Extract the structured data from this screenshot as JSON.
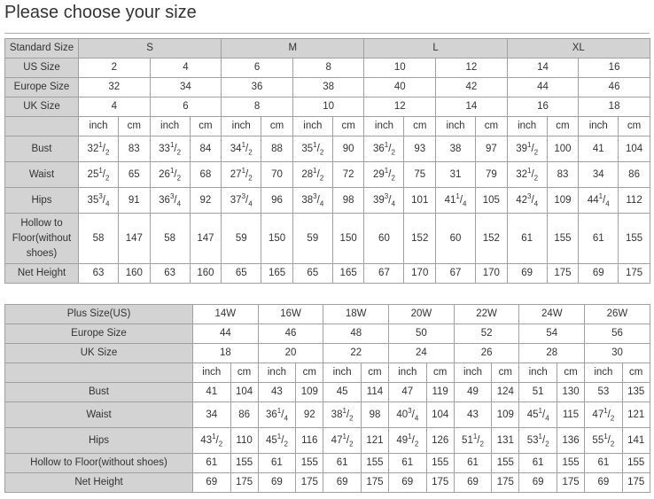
{
  "title": "Please choose your size",
  "colors": {
    "header_bg": "#d3d3d3",
    "border": "#a0a0a0",
    "text": "#333333"
  },
  "standard_table": {
    "header_label": "Standard Size",
    "groups": [
      "S",
      "M",
      "L",
      "XL"
    ],
    "size_rows": [
      {
        "label": "US Size",
        "values": [
          "2",
          "4",
          "6",
          "8",
          "10",
          "12",
          "14",
          "16"
        ]
      },
      {
        "label": "Europe Size",
        "values": [
          "32",
          "34",
          "36",
          "38",
          "40",
          "42",
          "44",
          "46"
        ]
      },
      {
        "label": "UK Size",
        "values": [
          "4",
          "6",
          "8",
          "10",
          "12",
          "14",
          "16",
          "18"
        ]
      }
    ],
    "units": [
      "inch",
      "cm"
    ],
    "measure_rows": [
      {
        "label": "Bust",
        "values": [
          "32 1/2",
          "83",
          "33 1/2",
          "84",
          "34 1/2",
          "88",
          "35 1/2",
          "90",
          "36 1/2",
          "93",
          "38",
          "97",
          "39 1/2",
          "100",
          "41",
          "104"
        ]
      },
      {
        "label": "Waist",
        "values": [
          "25 1/2",
          "65",
          "26 1/2",
          "68",
          "27 1/2",
          "70",
          "28 1/2",
          "72",
          "29 1/2",
          "75",
          "31",
          "79",
          "32 1/2",
          "83",
          "34",
          "86"
        ]
      },
      {
        "label": "Hips",
        "values": [
          "35 3/4",
          "91",
          "36 3/4",
          "92",
          "37 3/4",
          "96",
          "38 3/4",
          "98",
          "39 3/4",
          "101",
          "41 1/4",
          "105",
          "42 3/4",
          "109",
          "44 1/4",
          "112"
        ]
      },
      {
        "label": "Hollow to Floor(without shoes)",
        "values": [
          "58",
          "147",
          "58",
          "147",
          "59",
          "150",
          "59",
          "150",
          "60",
          "152",
          "60",
          "152",
          "61",
          "155",
          "61",
          "155"
        ]
      },
      {
        "label": "Net Height",
        "values": [
          "63",
          "160",
          "63",
          "160",
          "65",
          "165",
          "65",
          "165",
          "67",
          "170",
          "67",
          "170",
          "69",
          "175",
          "69",
          "175"
        ]
      }
    ]
  },
  "plus_table": {
    "size_rows": [
      {
        "label": "Plus Size(US)",
        "values": [
          "14W",
          "16W",
          "18W",
          "20W",
          "22W",
          "24W",
          "26W"
        ]
      },
      {
        "label": "Europe Size",
        "values": [
          "44",
          "46",
          "48",
          "50",
          "52",
          "54",
          "56"
        ]
      },
      {
        "label": "UK Size",
        "values": [
          "18",
          "20",
          "22",
          "24",
          "26",
          "28",
          "30"
        ]
      }
    ],
    "units": [
      "inch",
      "cm"
    ],
    "measure_rows": [
      {
        "label": "Bust",
        "values": [
          "41",
          "104",
          "43",
          "109",
          "45",
          "114",
          "47",
          "119",
          "49",
          "124",
          "51",
          "130",
          "53",
          "135"
        ]
      },
      {
        "label": "Waist",
        "values": [
          "34",
          "86",
          "36 1/4",
          "92",
          "38 1/2",
          "98",
          "40 3/4",
          "104",
          "43",
          "109",
          "45 1/4",
          "115",
          "47 1/2",
          "121"
        ]
      },
      {
        "label": "Hips",
        "values": [
          "43 1/2",
          "110",
          "45 1/2",
          "116",
          "47 1/2",
          "121",
          "49 1/2",
          "126",
          "51 1/2",
          "131",
          "53 1/2",
          "136",
          "55 1/2",
          "141"
        ]
      },
      {
        "label": "Hollow to Floor(without shoes)",
        "values": [
          "61",
          "155",
          "61",
          "155",
          "61",
          "155",
          "61",
          "155",
          "61",
          "155",
          "61",
          "155",
          "61",
          "155"
        ]
      },
      {
        "label": "Net Height",
        "values": [
          "69",
          "175",
          "69",
          "175",
          "69",
          "175",
          "69",
          "175",
          "69",
          "175",
          "69",
          "175",
          "69",
          "175"
        ]
      }
    ]
  }
}
